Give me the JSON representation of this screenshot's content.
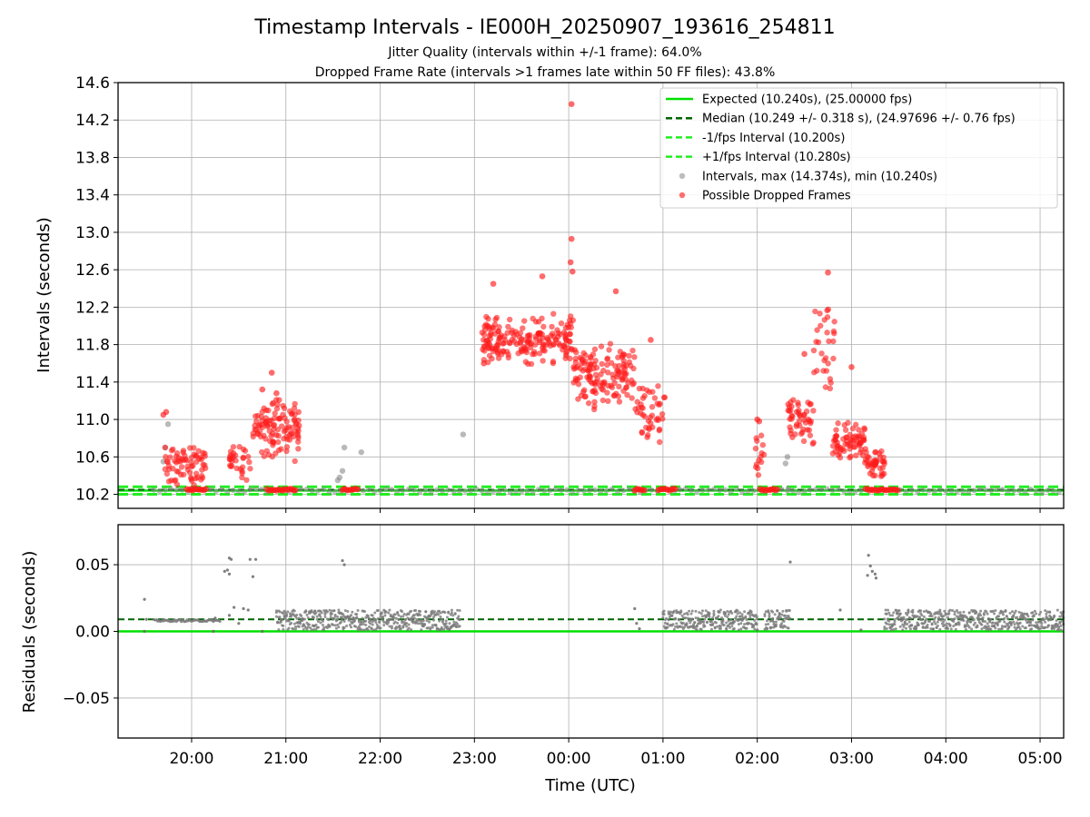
{
  "chart_data": {
    "title": "Timestamp Intervals - IE000H_20250907_193616_254811",
    "subtitle_jitter": "Jitter Quality (intervals within +/-1 frame): 64.0%",
    "subtitle_dropped": "Dropped Frame Rate (intervals >1 frames late within 50 FF files): 43.8%",
    "xlabel": "Time (UTC)",
    "x_unit": "hours since 00:00 UTC (negative = previous day)",
    "xlim": [
      -4.78,
      5.25
    ],
    "x_ticks": [
      {
        "v": -4,
        "label": "20:00"
      },
      {
        "v": -3,
        "label": "21:00"
      },
      {
        "v": -2,
        "label": "22:00"
      },
      {
        "v": -1,
        "label": "23:00"
      },
      {
        "v": 0,
        "label": "00:00"
      },
      {
        "v": 1,
        "label": "01:00"
      },
      {
        "v": 2,
        "label": "02:00"
      },
      {
        "v": 3,
        "label": "03:00"
      },
      {
        "v": 4,
        "label": "04:00"
      },
      {
        "v": 5,
        "label": "05:00"
      }
    ],
    "top": {
      "type": "scatter",
      "ylabel": "Intervals (seconds)",
      "ylim": [
        10.05,
        14.6
      ],
      "y_ticks": [
        {
          "v": 10.2,
          "label": "10.2"
        },
        {
          "v": 10.6,
          "label": "10.6"
        },
        {
          "v": 11.0,
          "label": "11.0"
        },
        {
          "v": 11.4,
          "label": "11.4"
        },
        {
          "v": 11.8,
          "label": "11.8"
        },
        {
          "v": 12.2,
          "label": "12.2"
        },
        {
          "v": 12.6,
          "label": "12.6"
        },
        {
          "v": 13.0,
          "label": "13.0"
        },
        {
          "v": 13.4,
          "label": "13.4"
        },
        {
          "v": 13.8,
          "label": "13.8"
        },
        {
          "v": 14.2,
          "label": "14.2"
        },
        {
          "v": 14.6,
          "label": "14.6"
        }
      ],
      "lines": {
        "expected": 10.24,
        "median": 10.249,
        "minus_fps": 10.2,
        "plus_fps": 10.28
      },
      "legend_position": "upper-right",
      "legend": [
        {
          "key": "expected",
          "label": "Expected (10.240s), (25.00000 fps)",
          "style": "solid",
          "color": "#00e000"
        },
        {
          "key": "median",
          "label": "Median (10.249 +/- 0.318 s), (24.97696 +/- 0.76 fps)",
          "style": "dashed",
          "color": "#006400"
        },
        {
          "key": "minus",
          "label": "-1/fps Interval (10.200s)",
          "style": "dashed",
          "color": "#22ee22"
        },
        {
          "key": "plus",
          "label": "+1/fps Interval (10.280s)",
          "style": "dashed",
          "color": "#22ee22"
        },
        {
          "key": "intervals",
          "label": "Intervals, max (14.374s), min (10.240s)",
          "style": "marker",
          "color": "#999999"
        },
        {
          "key": "dropped",
          "label": "Possible Dropped Frames",
          "style": "marker",
          "color": "#ff2020"
        }
      ],
      "normal_band": {
        "from": -4.4,
        "to": 5.25,
        "value": 10.24
      },
      "gray_outliers": [
        [
          -4.0,
          10.26
        ],
        [
          -4.3,
          10.55
        ],
        [
          -4.28,
          10.7
        ],
        [
          -4.25,
          10.95
        ],
        [
          -1.12,
          10.84
        ],
        [
          -2.2,
          10.65
        ],
        [
          -2.38,
          10.7
        ],
        [
          -2.4,
          10.45
        ],
        [
          -2.43,
          10.38
        ],
        [
          -2.45,
          10.35
        ],
        [
          2.3,
          10.53
        ],
        [
          2.32,
          10.6
        ],
        [
          2.33,
          10.26
        ]
      ],
      "dropped_clusters": [
        {
          "x0": -4.3,
          "x1": -3.85,
          "ylo": 10.28,
          "yhi": 10.75,
          "n": 70
        },
        {
          "x0": -3.35,
          "x1": -2.85,
          "ylo": 10.55,
          "yhi": 11.25,
          "n": 110
        },
        {
          "x0": -3.6,
          "x1": -3.35,
          "ylo": 10.35,
          "yhi": 10.8,
          "n": 30
        },
        {
          "x0": -0.92,
          "x1": 0.05,
          "ylo": 11.55,
          "yhi": 12.15,
          "n": 190
        },
        {
          "x0": 0.05,
          "x1": 0.7,
          "ylo": 11.1,
          "yhi": 11.85,
          "n": 140
        },
        {
          "x0": 0.7,
          "x1": 1.02,
          "ylo": 10.7,
          "yhi": 11.4,
          "n": 45
        },
        {
          "x0": 2.32,
          "x1": 2.6,
          "ylo": 10.7,
          "yhi": 11.3,
          "n": 50
        },
        {
          "x0": 2.6,
          "x1": 2.82,
          "ylo": 11.3,
          "yhi": 12.3,
          "n": 30
        },
        {
          "x0": 2.8,
          "x1": 3.15,
          "ylo": 10.5,
          "yhi": 11.0,
          "n": 70
        },
        {
          "x0": 3.15,
          "x1": 3.35,
          "ylo": 10.3,
          "yhi": 10.7,
          "n": 40
        },
        {
          "x0": 1.98,
          "x1": 2.08,
          "ylo": 10.3,
          "yhi": 10.9,
          "n": 14
        }
      ],
      "dropped_points": [
        [
          0.03,
          14.37
        ],
        [
          0.03,
          12.93
        ],
        [
          0.02,
          12.68
        ],
        [
          0.04,
          12.58
        ],
        [
          -0.28,
          12.53
        ],
        [
          -0.8,
          12.45
        ],
        [
          2.75,
          12.57
        ],
        [
          -3.15,
          11.5
        ],
        [
          -3.1,
          11.28
        ],
        [
          -3.25,
          11.32
        ],
        [
          0.5,
          12.37
        ],
        [
          -4.3,
          11.05
        ],
        [
          -4.27,
          11.08
        ],
        [
          2.5,
          11.7
        ],
        [
          3.0,
          11.56
        ],
        [
          2.0,
          11.0
        ],
        [
          2.02,
          10.98
        ],
        [
          0.87,
          11.85
        ],
        [
          -0.86,
          12.0
        ],
        [
          -0.9,
          11.6
        ]
      ],
      "dropped_baseline": [
        [
          -4.05,
          -3.85
        ],
        [
          -3.2,
          -2.9
        ],
        [
          -2.4,
          -2.23
        ],
        [
          0.7,
          0.82
        ],
        [
          0.95,
          1.15
        ],
        [
          2.03,
          2.22
        ],
        [
          3.15,
          3.5
        ]
      ]
    },
    "bottom": {
      "type": "scatter",
      "ylabel": "Residuals (seconds)",
      "ylim": [
        -0.08,
        0.08
      ],
      "y_ticks": [
        {
          "v": 0.05,
          "label": "0.05"
        },
        {
          "v": 0.0,
          "label": "0.00"
        },
        {
          "v": -0.05,
          "label": "−0.05"
        }
      ],
      "lines": {
        "expected": 0.0,
        "median": 0.009
      },
      "band_segments": [
        {
          "x0": -3.1,
          "x1": -1.15,
          "ylo": 0.001,
          "yhi": 0.016
        },
        {
          "x0": 1.0,
          "x1": 2.0,
          "ylo": 0.001,
          "yhi": 0.016
        },
        {
          "x0": 2.08,
          "x1": 2.35,
          "ylo": 0.001,
          "yhi": 0.016
        },
        {
          "x0": 3.35,
          "x1": 5.25,
          "ylo": 0.001,
          "yhi": 0.016
        }
      ],
      "flat_segment": {
        "x0": -4.4,
        "x1": -3.7,
        "value": 0.008
      },
      "extra_points": [
        [
          -4.5,
          0.024
        ],
        [
          -4.48,
          0.009
        ],
        [
          -4.5,
          0.0
        ],
        [
          -3.77,
          0.0
        ],
        [
          -3.75,
          0.01
        ],
        [
          -3.6,
          0.055
        ],
        [
          -3.58,
          0.054
        ],
        [
          -3.62,
          0.046
        ],
        [
          -3.6,
          0.043
        ],
        [
          -3.65,
          0.045
        ],
        [
          -3.38,
          0.054
        ],
        [
          -3.32,
          0.054
        ],
        [
          -3.35,
          0.041
        ],
        [
          -3.55,
          0.018
        ],
        [
          -3.45,
          0.017
        ],
        [
          -3.4,
          0.016
        ],
        [
          -3.6,
          0.012
        ],
        [
          -3.5,
          0.006
        ],
        [
          -3.25,
          0.0
        ],
        [
          -2.4,
          0.053
        ],
        [
          -2.38,
          0.05
        ],
        [
          -2.7,
          0.004
        ],
        [
          0.7,
          0.017
        ],
        [
          0.72,
          0.006
        ],
        [
          0.75,
          0.002
        ],
        [
          2.35,
          0.052
        ],
        [
          2.88,
          0.016
        ],
        [
          3.18,
          0.057
        ],
        [
          3.2,
          0.049
        ],
        [
          3.17,
          0.042
        ],
        [
          3.25,
          0.043
        ],
        [
          3.26,
          0.04
        ],
        [
          3.22,
          0.045
        ],
        [
          3.1,
          0.001
        ],
        [
          2.0,
          0.001
        ]
      ]
    }
  }
}
